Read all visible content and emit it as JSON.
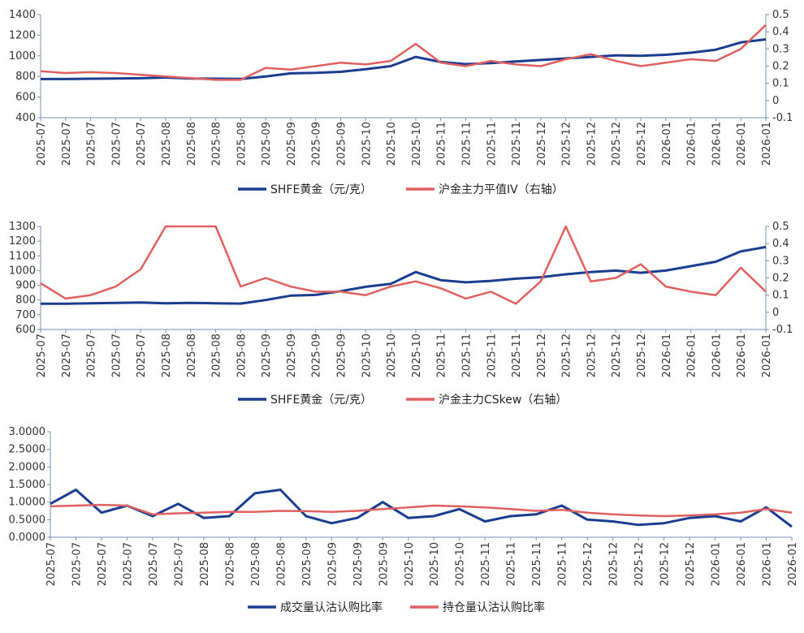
{
  "charts_title": "",
  "chart_data": [
    {
      "type": "line",
      "title": "",
      "x_tick_labels": [
        "2025-07",
        "2025-07",
        "2025-07",
        "2025-07",
        "2025-07",
        "2025-08",
        "2025-08",
        "2025-08",
        "2025-08",
        "2025-09",
        "2025-09",
        "2025-09",
        "2025-09",
        "2025-10",
        "2025-10",
        "2025-10",
        "2025-11",
        "2025-11",
        "2025-11",
        "2025-11",
        "2025-12",
        "2025-12",
        "2025-12",
        "2025-12",
        "2025-12",
        "2026-01",
        "2026-01",
        "2026-01",
        "2026-01",
        "2026-01"
      ],
      "left_axis": {
        "ylim": [
          400,
          1400
        ],
        "ticks": [
          "400",
          "600",
          "800",
          "1000",
          "1200",
          "1400"
        ]
      },
      "right_axis": {
        "ylim": [
          -0.1,
          0.5
        ],
        "ticks": [
          "-0.1",
          "0",
          "0.1",
          "0.2",
          "0.3",
          "0.4",
          "0.5"
        ]
      },
      "series": [
        {
          "name": "SHFE黄金（元/克）",
          "axis": "left",
          "color": "#1a3d8f",
          "x": [
            0,
            1,
            2,
            3,
            4,
            5,
            6,
            7,
            8,
            9,
            10,
            11,
            12,
            13,
            14,
            15,
            16,
            17,
            18,
            19,
            20,
            21,
            22,
            23,
            24,
            25,
            26,
            27,
            28,
            29
          ],
          "values": [
            775,
            775,
            778,
            780,
            783,
            790,
            780,
            778,
            776,
            800,
            830,
            835,
            845,
            870,
            900,
            990,
            940,
            920,
            930,
            945,
            960,
            975,
            990,
            1005,
            1000,
            1010,
            1030,
            1060,
            1130,
            1160
          ]
        },
        {
          "name": "沪金主力平值IV（右轴）",
          "axis": "right",
          "color": "#e06060",
          "x": [
            0,
            1,
            2,
            3,
            4,
            5,
            6,
            7,
            8,
            9,
            10,
            11,
            12,
            13,
            14,
            15,
            16,
            17,
            18,
            19,
            20,
            21,
            22,
            23,
            24,
            25,
            26,
            27,
            28,
            29
          ],
          "values": [
            0.17,
            0.16,
            0.165,
            0.16,
            0.15,
            0.14,
            0.13,
            0.12,
            0.12,
            0.19,
            0.18,
            0.2,
            0.22,
            0.21,
            0.23,
            0.33,
            0.22,
            0.2,
            0.23,
            0.21,
            0.2,
            0.24,
            0.27,
            0.23,
            0.2,
            0.22,
            0.24,
            0.23,
            0.3,
            0.44
          ]
        }
      ],
      "legend_position": "bottom",
      "grid": false
    },
    {
      "type": "line",
      "title": "",
      "x_tick_labels": [
        "2025-07",
        "2025-07",
        "2025-07",
        "2025-07",
        "2025-07",
        "2025-08",
        "2025-08",
        "2025-08",
        "2025-08",
        "2025-09",
        "2025-09",
        "2025-09",
        "2025-09",
        "2025-10",
        "2025-10",
        "2025-10",
        "2025-11",
        "2025-11",
        "2025-11",
        "2025-11",
        "2025-12",
        "2025-12",
        "2025-12",
        "2025-12",
        "2025-12",
        "2026-01",
        "2026-01",
        "2026-01",
        "2026-01",
        "2026-01"
      ],
      "left_axis": {
        "ylim": [
          600,
          1300
        ],
        "ticks": [
          "600",
          "700",
          "800",
          "900",
          "1000",
          "1100",
          "1200",
          "1300"
        ]
      },
      "right_axis": {
        "ylim": [
          -0.1,
          0.5
        ],
        "ticks": [
          "-0.1",
          "0",
          "0.1",
          "0.2",
          "0.3",
          "0.4",
          "0.5"
        ]
      },
      "series": [
        {
          "name": "SHFE黄金（元/克）",
          "axis": "left",
          "color": "#1a3d8f",
          "x": [
            0,
            1,
            2,
            3,
            4,
            5,
            6,
            7,
            8,
            9,
            10,
            11,
            12,
            13,
            14,
            15,
            16,
            17,
            18,
            19,
            20,
            21,
            22,
            23,
            24,
            25,
            26,
            27,
            28,
            29
          ],
          "values": [
            775,
            775,
            778,
            780,
            783,
            778,
            780,
            778,
            776,
            800,
            830,
            835,
            860,
            890,
            910,
            990,
            935,
            920,
            930,
            945,
            955,
            975,
            990,
            1000,
            985,
            1000,
            1030,
            1060,
            1130,
            1160
          ]
        },
        {
          "name": "沪金主力CSkew（右轴）",
          "axis": "right",
          "color": "#e06060",
          "x": [
            0,
            1,
            2,
            3,
            4,
            5,
            6,
            7,
            8,
            9,
            10,
            11,
            12,
            13,
            14,
            15,
            16,
            17,
            18,
            19,
            20,
            21,
            22,
            23,
            24,
            25,
            26,
            27,
            28,
            29
          ],
          "values": [
            0.17,
            0.08,
            0.1,
            0.15,
            0.25,
            0.5,
            0.5,
            0.5,
            0.15,
            0.2,
            0.15,
            0.12,
            0.12,
            0.1,
            0.15,
            0.18,
            0.14,
            0.08,
            0.12,
            0.05,
            0.18,
            0.5,
            0.18,
            0.2,
            0.28,
            0.15,
            0.12,
            0.1,
            0.26,
            0.12
          ]
        }
      ],
      "legend_position": "bottom",
      "grid": false
    },
    {
      "type": "line",
      "title": "",
      "x_tick_labels": [
        "2025-07",
        "2025-07",
        "2025-07",
        "2025-07",
        "2025-07",
        "2025-07",
        "2025-08",
        "2025-08",
        "2025-08",
        "2025-08",
        "2025-09",
        "2025-09",
        "2025-09",
        "2025-09",
        "2025-10",
        "2025-10",
        "2025-10",
        "2025-11",
        "2025-11",
        "2025-11",
        "2025-11",
        "2025-12",
        "2025-12",
        "2025-12",
        "2025-12",
        "2025-12",
        "2026-01",
        "2026-01",
        "2026-01",
        "2026-01"
      ],
      "left_axis": {
        "ylim": [
          0,
          3
        ],
        "ticks": [
          "0.0000",
          "0.5000",
          "1.0000",
          "1.5000",
          "2.0000",
          "2.5000",
          "3.0000"
        ]
      },
      "series": [
        {
          "name": "成交量认沽认购比率",
          "axis": "left",
          "color": "#1a3d8f",
          "x": [
            0,
            1,
            2,
            3,
            4,
            5,
            6,
            7,
            8,
            9,
            10,
            11,
            12,
            13,
            14,
            15,
            16,
            17,
            18,
            19,
            20,
            21,
            22,
            23,
            24,
            25,
            26,
            27,
            28,
            29
          ],
          "values": [
            0.95,
            1.35,
            0.7,
            0.9,
            0.6,
            0.95,
            0.55,
            0.6,
            1.25,
            1.35,
            0.6,
            0.4,
            0.55,
            1.0,
            0.55,
            0.6,
            0.8,
            0.45,
            0.6,
            0.65,
            0.9,
            0.5,
            0.45,
            0.35,
            0.4,
            0.55,
            0.6,
            0.45,
            0.85,
            0.3
          ]
        },
        {
          "name": "持仓量认沽认购比率",
          "axis": "left",
          "color": "#e06060",
          "x": [
            0,
            1,
            2,
            3,
            4,
            5,
            6,
            7,
            8,
            9,
            10,
            11,
            12,
            13,
            14,
            15,
            16,
            17,
            18,
            19,
            20,
            21,
            22,
            23,
            24,
            25,
            26,
            27,
            28,
            29
          ],
          "values": [
            0.88,
            0.9,
            0.92,
            0.9,
            0.65,
            0.68,
            0.7,
            0.72,
            0.72,
            0.75,
            0.74,
            0.72,
            0.75,
            0.8,
            0.85,
            0.9,
            0.88,
            0.85,
            0.8,
            0.75,
            0.78,
            0.7,
            0.65,
            0.62,
            0.6,
            0.62,
            0.65,
            0.7,
            0.8,
            0.7
          ]
        }
      ],
      "legend_position": "bottom",
      "grid": false
    }
  ]
}
